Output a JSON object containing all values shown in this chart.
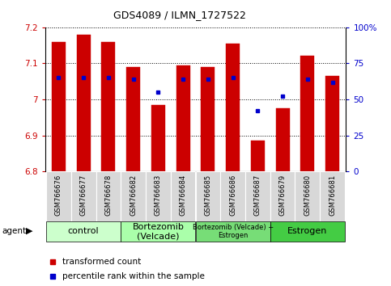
{
  "title": "GDS4089 / ILMN_1727522",
  "samples": [
    "GSM766676",
    "GSM766677",
    "GSM766678",
    "GSM766682",
    "GSM766683",
    "GSM766684",
    "GSM766685",
    "GSM766686",
    "GSM766687",
    "GSM766679",
    "GSM766680",
    "GSM766681"
  ],
  "bar_values": [
    7.16,
    7.18,
    7.16,
    7.09,
    6.985,
    7.095,
    7.09,
    7.155,
    6.885,
    6.975,
    7.12,
    7.065
  ],
  "bar_bottom": 6.8,
  "percentile_right": [
    65,
    65,
    65,
    64,
    55,
    64,
    64,
    65,
    42,
    52,
    64,
    62
  ],
  "bar_color": "#cc0000",
  "dot_color": "#0000cc",
  "ylim_left": [
    6.8,
    7.2
  ],
  "ylim_right": [
    0,
    100
  ],
  "yticks_left": [
    6.8,
    6.9,
    7.0,
    7.1,
    7.2
  ],
  "ytick_labels_left": [
    "6.8",
    "6.9",
    "7",
    "7.1",
    "7.2"
  ],
  "yticks_right": [
    0,
    25,
    50,
    75,
    100
  ],
  "ytick_labels_right": [
    "0",
    "25",
    "50",
    "75",
    "100%"
  ],
  "groups": [
    {
      "label": "control",
      "start": 0,
      "end": 3,
      "color": "#ccffcc",
      "font_size": 8
    },
    {
      "label": "Bortezomib\n(Velcade)",
      "start": 3,
      "end": 6,
      "color": "#aaffaa",
      "font_size": 8
    },
    {
      "label": "Bortezomib (Velcade) +\nEstrogen",
      "start": 6,
      "end": 9,
      "color": "#77dd77",
      "font_size": 6
    },
    {
      "label": "Estrogen",
      "start": 9,
      "end": 12,
      "color": "#44cc44",
      "font_size": 8
    }
  ],
  "legend_items": [
    {
      "color": "#cc0000",
      "label": "transformed count"
    },
    {
      "color": "#0000cc",
      "label": "percentile rank within the sample"
    }
  ],
  "agent_label": "agent",
  "bar_width": 0.55,
  "axis_color_left": "#cc0000",
  "axis_color_right": "#0000cc"
}
